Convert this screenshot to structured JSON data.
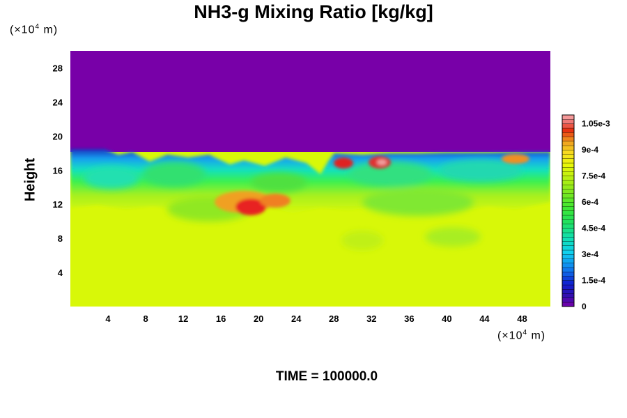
{
  "chart_data": {
    "type": "heatmap",
    "title": "NH3-g Mixing Ratio [kg/kg]",
    "ylabel": "Height",
    "x_unit_prefix": "(×10",
    "x_unit_exp": "4",
    "x_unit_suffix": " m)",
    "y_unit_prefix": "(×10",
    "y_unit_exp": "4",
    "y_unit_suffix": " m)",
    "xlim": [
      0,
      51
    ],
    "ylim": [
      0,
      30
    ],
    "x_ticks": [
      4,
      8,
      12,
      16,
      20,
      24,
      28,
      32,
      36,
      40,
      44,
      48
    ],
    "y_ticks": [
      4,
      8,
      12,
      16,
      20,
      24,
      28
    ],
    "colorbar": {
      "vmin": 0,
      "vmax": 0.0011,
      "tick_values": [
        0,
        0.00015,
        0.0003,
        0.00045,
        0.0006,
        0.00075,
        0.0009,
        0.00105
      ],
      "tick_labels": [
        "0",
        "1.5e-4",
        "3e-4",
        "4.5e-4",
        "6e-4",
        "7.5e-4",
        "9e-4",
        "1.05e-3"
      ]
    },
    "regions": [
      {
        "name": "upper",
        "height_range": [
          18,
          30
        ],
        "value": 0
      },
      {
        "name": "lower",
        "height_range": [
          0,
          14
        ],
        "value": 0.00076
      },
      {
        "name": "transition-band",
        "height_range": [
          13,
          18
        ],
        "value_range": [
          0.0001,
          0.0008
        ]
      },
      {
        "name": "high-patch-1",
        "x": 20,
        "y": 11.5,
        "value": 0.001
      },
      {
        "name": "high-patch-2",
        "x": 29.5,
        "y": 16.5,
        "value": 0.001
      },
      {
        "name": "high-patch-3",
        "x": 33,
        "y": 16.8,
        "value": 0.0011
      }
    ]
  },
  "footer": {
    "time_label": "TIME = 100000.0"
  }
}
